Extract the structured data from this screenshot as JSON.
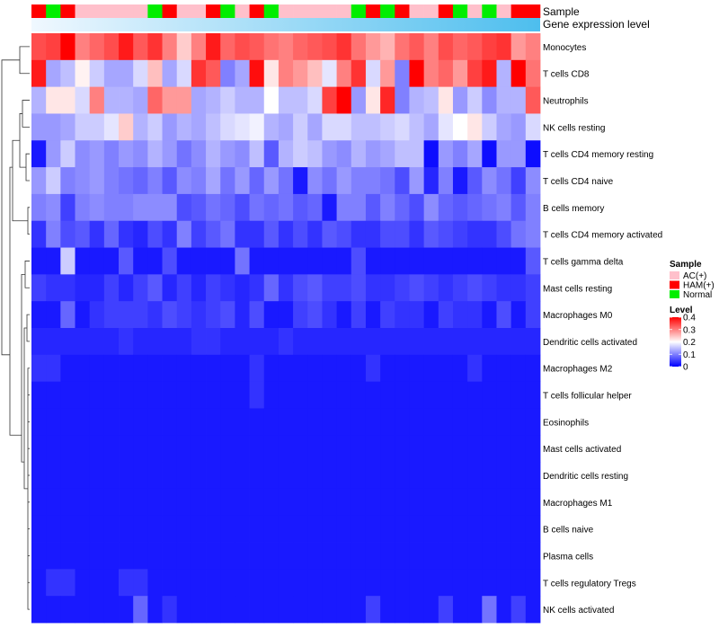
{
  "chart_data": {
    "type": "heatmap",
    "title": "",
    "top_annotations": {
      "sample_label": "Sample",
      "gene_label": "Gene expression level",
      "sample_groups": [
        "HAM",
        "Normal",
        "HAM",
        "AC",
        "AC",
        "AC",
        "AC",
        "AC",
        "Normal",
        "HAM",
        "AC",
        "AC",
        "HAM",
        "Normal",
        "AC",
        "HAM",
        "Normal",
        "AC",
        "AC",
        "AC",
        "AC",
        "AC",
        "Normal",
        "HAM",
        "Normal",
        "HAM",
        "AC",
        "AC",
        "HAM",
        "Normal",
        "AC",
        "Normal",
        "AC",
        "HAM",
        "HAM"
      ]
    },
    "rows": [
      "Monocytes",
      "T cells CD8",
      "Neutrophils",
      "NK cells resting",
      "T cells CD4 memory resting",
      "T cells CD4 naive",
      "B cells memory",
      "T cells CD4 memory activated",
      "T cells gamma delta",
      "Mast cells resting",
      "Macrophages M0",
      "Dendritic cells activated",
      "Macrophages M2",
      "T cells follicular helper",
      "Eosinophils",
      "Mast cells activated",
      "Dendritic cells resting",
      "Macrophages M1",
      "B cells naive",
      "Plasma cells",
      "T cells regulatory  Tregs",
      "NK cells activated"
    ],
    "n_columns": 35,
    "values": [
      [
        0.34,
        0.35,
        0.4,
        0.3,
        0.32,
        0.34,
        0.38,
        0.33,
        0.36,
        0.3,
        0.24,
        0.3,
        0.38,
        0.32,
        0.34,
        0.33,
        0.31,
        0.3,
        0.32,
        0.33,
        0.34,
        0.36,
        0.31,
        0.28,
        0.26,
        0.31,
        0.33,
        0.3,
        0.34,
        0.32,
        0.33,
        0.35,
        0.36,
        0.28,
        0.3
      ],
      [
        0.38,
        0.13,
        0.15,
        0.21,
        0.16,
        0.13,
        0.13,
        0.17,
        0.25,
        0.13,
        0.17,
        0.36,
        0.33,
        0.1,
        0.13,
        0.39,
        0.22,
        0.3,
        0.28,
        0.25,
        0.18,
        0.3,
        0.36,
        0.17,
        0.28,
        0.1,
        0.4,
        0.3,
        0.32,
        0.28,
        0.35,
        0.38,
        0.14,
        0.4,
        0.31
      ],
      [
        0.14,
        0.22,
        0.22,
        0.17,
        0.3,
        0.14,
        0.14,
        0.13,
        0.32,
        0.28,
        0.28,
        0.13,
        0.14,
        0.16,
        0.14,
        0.14,
        0.2,
        0.15,
        0.15,
        0.17,
        0.35,
        0.4,
        0.12,
        0.22,
        0.37,
        0.1,
        0.14,
        0.15,
        0.22,
        0.12,
        0.16,
        0.11,
        0.14,
        0.14,
        0.33
      ],
      [
        0.12,
        0.12,
        0.13,
        0.16,
        0.16,
        0.18,
        0.24,
        0.14,
        0.16,
        0.12,
        0.14,
        0.13,
        0.15,
        0.17,
        0.18,
        0.19,
        0.14,
        0.13,
        0.16,
        0.13,
        0.17,
        0.17,
        0.15,
        0.15,
        0.16,
        0.17,
        0.15,
        0.13,
        0.18,
        0.2,
        0.22,
        0.16,
        0.13,
        0.12,
        0.17
      ],
      [
        0.02,
        0.12,
        0.16,
        0.11,
        0.12,
        0.1,
        0.12,
        0.11,
        0.14,
        0.12,
        0.09,
        0.11,
        0.14,
        0.12,
        0.11,
        0.15,
        0.07,
        0.14,
        0.16,
        0.15,
        0.12,
        0.11,
        0.14,
        0.12,
        0.13,
        0.15,
        0.15,
        0.01,
        0.12,
        0.1,
        0.13,
        0.01,
        0.12,
        0.12,
        0.01
      ],
      [
        0.12,
        0.16,
        0.1,
        0.11,
        0.12,
        0.1,
        0.09,
        0.08,
        0.1,
        0.07,
        0.11,
        0.1,
        0.13,
        0.09,
        0.12,
        0.08,
        0.12,
        0.09,
        0.02,
        0.11,
        0.09,
        0.12,
        0.1,
        0.1,
        0.09,
        0.06,
        0.12,
        0.03,
        0.1,
        0.02,
        0.07,
        0.11,
        0.09,
        0.05,
        0.11
      ],
      [
        0.1,
        0.11,
        0.05,
        0.1,
        0.11,
        0.1,
        0.1,
        0.11,
        0.11,
        0.11,
        0.06,
        0.07,
        0.09,
        0.08,
        0.06,
        0.09,
        0.08,
        0.09,
        0.07,
        0.08,
        0.02,
        0.1,
        0.1,
        0.07,
        0.1,
        0.08,
        0.06,
        0.11,
        0.08,
        0.07,
        0.08,
        0.09,
        0.1,
        0.07,
        0.1
      ],
      [
        0.04,
        0.1,
        0.06,
        0.07,
        0.04,
        0.08,
        0.04,
        0.03,
        0.06,
        0.04,
        0.1,
        0.05,
        0.07,
        0.09,
        0.04,
        0.04,
        0.07,
        0.04,
        0.06,
        0.04,
        0.07,
        0.06,
        0.04,
        0.04,
        0.06,
        0.06,
        0.04,
        0.07,
        0.06,
        0.05,
        0.04,
        0.04,
        0.06,
        0.09,
        0.1
      ],
      [
        0.02,
        0.02,
        0.16,
        0.02,
        0.02,
        0.02,
        0.07,
        0.02,
        0.02,
        0.06,
        0.02,
        0.02,
        0.02,
        0.02,
        0.09,
        0.02,
        0.02,
        0.02,
        0.02,
        0.02,
        0.02,
        0.02,
        0.06,
        0.02,
        0.02,
        0.02,
        0.02,
        0.02,
        0.02,
        0.02,
        0.02,
        0.02,
        0.02,
        0.02,
        0.07
      ],
      [
        0.05,
        0.04,
        0.04,
        0.03,
        0.03,
        0.05,
        0.03,
        0.05,
        0.07,
        0.03,
        0.05,
        0.03,
        0.05,
        0.04,
        0.03,
        0.04,
        0.08,
        0.04,
        0.06,
        0.07,
        0.05,
        0.05,
        0.06,
        0.04,
        0.04,
        0.05,
        0.06,
        0.05,
        0.04,
        0.05,
        0.06,
        0.05,
        0.04,
        0.04,
        0.05
      ],
      [
        0.02,
        0.02,
        0.08,
        0.02,
        0.04,
        0.05,
        0.05,
        0.05,
        0.04,
        0.06,
        0.05,
        0.04,
        0.05,
        0.06,
        0.03,
        0.06,
        0.02,
        0.02,
        0.05,
        0.06,
        0.04,
        0.02,
        0.05,
        0.02,
        0.05,
        0.04,
        0.04,
        0.02,
        0.05,
        0.04,
        0.04,
        0.02,
        0.06,
        0.02,
        0.05
      ],
      [
        0.03,
        0.03,
        0.03,
        0.03,
        0.03,
        0.03,
        0.04,
        0.03,
        0.03,
        0.03,
        0.03,
        0.04,
        0.04,
        0.03,
        0.03,
        0.03,
        0.03,
        0.04,
        0.03,
        0.03,
        0.03,
        0.03,
        0.03,
        0.03,
        0.03,
        0.03,
        0.03,
        0.03,
        0.03,
        0.03,
        0.03,
        0.03,
        0.03,
        0.03,
        0.03
      ],
      [
        0.04,
        0.04,
        0.02,
        0.02,
        0.02,
        0.02,
        0.02,
        0.02,
        0.02,
        0.02,
        0.02,
        0.02,
        0.02,
        0.02,
        0.02,
        0.04,
        0.02,
        0.02,
        0.02,
        0.02,
        0.02,
        0.02,
        0.02,
        0.04,
        0.02,
        0.02,
        0.02,
        0.02,
        0.02,
        0.02,
        0.04,
        0.02,
        0.02,
        0.02,
        0.02
      ],
      [
        0.02,
        0.02,
        0.02,
        0.02,
        0.02,
        0.02,
        0.02,
        0.02,
        0.02,
        0.02,
        0.02,
        0.02,
        0.02,
        0.02,
        0.02,
        0.04,
        0.02,
        0.02,
        0.02,
        0.02,
        0.02,
        0.02,
        0.02,
        0.02,
        0.02,
        0.02,
        0.02,
        0.02,
        0.02,
        0.02,
        0.02,
        0.02,
        0.02,
        0.02,
        0.02
      ],
      [
        0.02,
        0.02,
        0.02,
        0.02,
        0.02,
        0.02,
        0.02,
        0.02,
        0.02,
        0.02,
        0.02,
        0.02,
        0.02,
        0.02,
        0.02,
        0.02,
        0.02,
        0.02,
        0.02,
        0.02,
        0.02,
        0.02,
        0.02,
        0.02,
        0.02,
        0.02,
        0.02,
        0.02,
        0.02,
        0.02,
        0.02,
        0.02,
        0.02,
        0.02,
        0.02
      ],
      [
        0.02,
        0.02,
        0.02,
        0.02,
        0.02,
        0.02,
        0.02,
        0.02,
        0.02,
        0.02,
        0.02,
        0.02,
        0.02,
        0.02,
        0.02,
        0.02,
        0.02,
        0.02,
        0.02,
        0.02,
        0.02,
        0.02,
        0.02,
        0.02,
        0.02,
        0.02,
        0.02,
        0.02,
        0.02,
        0.02,
        0.02,
        0.02,
        0.02,
        0.02,
        0.02
      ],
      [
        0.02,
        0.02,
        0.02,
        0.02,
        0.02,
        0.02,
        0.02,
        0.02,
        0.02,
        0.02,
        0.02,
        0.02,
        0.02,
        0.02,
        0.02,
        0.02,
        0.02,
        0.02,
        0.02,
        0.02,
        0.02,
        0.02,
        0.02,
        0.02,
        0.02,
        0.02,
        0.02,
        0.02,
        0.02,
        0.02,
        0.02,
        0.02,
        0.02,
        0.02,
        0.02
      ],
      [
        0.02,
        0.02,
        0.02,
        0.02,
        0.02,
        0.02,
        0.02,
        0.02,
        0.02,
        0.02,
        0.02,
        0.02,
        0.02,
        0.02,
        0.02,
        0.02,
        0.02,
        0.02,
        0.02,
        0.02,
        0.02,
        0.02,
        0.02,
        0.02,
        0.02,
        0.02,
        0.02,
        0.02,
        0.02,
        0.02,
        0.02,
        0.02,
        0.02,
        0.02,
        0.02
      ],
      [
        0.02,
        0.02,
        0.02,
        0.02,
        0.02,
        0.02,
        0.02,
        0.02,
        0.02,
        0.02,
        0.02,
        0.02,
        0.02,
        0.02,
        0.02,
        0.02,
        0.02,
        0.02,
        0.02,
        0.02,
        0.02,
        0.02,
        0.02,
        0.02,
        0.02,
        0.02,
        0.02,
        0.02,
        0.02,
        0.02,
        0.02,
        0.02,
        0.02,
        0.02,
        0.02
      ],
      [
        0.02,
        0.02,
        0.02,
        0.02,
        0.02,
        0.02,
        0.02,
        0.02,
        0.02,
        0.02,
        0.02,
        0.02,
        0.02,
        0.02,
        0.02,
        0.02,
        0.02,
        0.02,
        0.02,
        0.02,
        0.02,
        0.02,
        0.02,
        0.02,
        0.02,
        0.02,
        0.02,
        0.02,
        0.02,
        0.02,
        0.02,
        0.02,
        0.02,
        0.02,
        0.02
      ],
      [
        0.02,
        0.04,
        0.04,
        0.02,
        0.02,
        0.02,
        0.04,
        0.04,
        0.02,
        0.02,
        0.02,
        0.02,
        0.02,
        0.02,
        0.02,
        0.02,
        0.02,
        0.02,
        0.02,
        0.02,
        0.02,
        0.02,
        0.02,
        0.02,
        0.02,
        0.02,
        0.02,
        0.02,
        0.02,
        0.02,
        0.02,
        0.02,
        0.02,
        0.02,
        0.02
      ],
      [
        0.02,
        0.02,
        0.02,
        0.02,
        0.02,
        0.02,
        0.02,
        0.08,
        0.02,
        0.04,
        0.02,
        0.02,
        0.02,
        0.02,
        0.02,
        0.02,
        0.02,
        0.02,
        0.02,
        0.02,
        0.02,
        0.02,
        0.02,
        0.05,
        0.02,
        0.02,
        0.02,
        0.02,
        0.05,
        0.02,
        0.02,
        0.09,
        0.02,
        0.05,
        0.02
      ]
    ],
    "sample_legend": {
      "title": "Sample",
      "items": [
        {
          "label": "AC(+)",
          "color": "#FFC0CB"
        },
        {
          "label": "HAM(+)",
          "color": "#FF0000"
        },
        {
          "label": "Normal",
          "color": "#00EE00"
        }
      ]
    },
    "level_legend": {
      "title": "Level",
      "ticks": [
        "0.4",
        "0.3",
        "0.2",
        "0.1",
        "0"
      ],
      "tick_values": [
        0.4,
        0.3,
        0.2,
        0.1,
        0
      ],
      "range": [
        0,
        0.4
      ],
      "colors": {
        "low": "#0000FF",
        "mid": "#FFFFFF",
        "high": "#FF0000"
      }
    },
    "group_colors": {
      "AC": "#FFC0CB",
      "HAM": "#FF0000",
      "Normal": "#00EE00"
    },
    "gene_bar_colors": {
      "start": "#F0F8FF",
      "end": "#4DBEEE"
    }
  }
}
